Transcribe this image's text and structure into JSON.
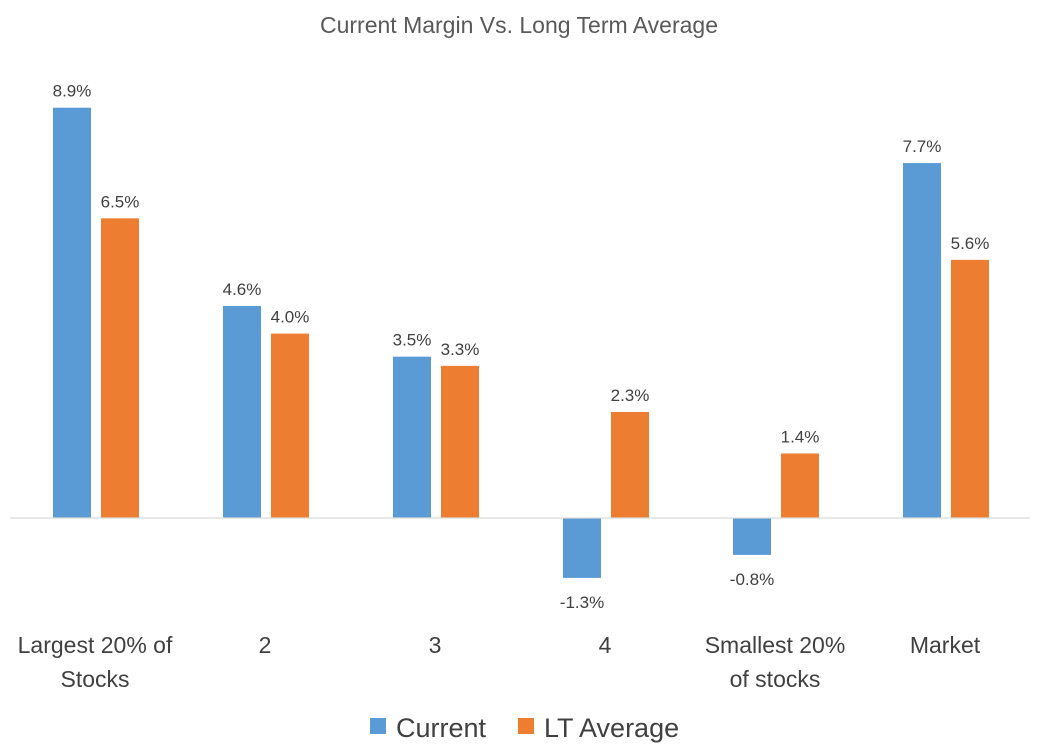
{
  "chart_data": {
    "type": "bar",
    "title": "Current Margin Vs. Long Term Average",
    "categories": [
      [
        "Largest 20% of",
        "Stocks"
      ],
      [
        "2"
      ],
      [
        "3"
      ],
      [
        "4"
      ],
      [
        "Smallest 20%",
        "of stocks"
      ],
      [
        "Market"
      ]
    ],
    "series": [
      {
        "name": "Current",
        "color": "#5B9BD5",
        "values": [
          8.9,
          4.6,
          3.5,
          -1.3,
          -0.8,
          7.7
        ],
        "labels": [
          "8.9%",
          "4.6%",
          "3.5%",
          "-1.3%",
          "-0.8%",
          "7.7%"
        ]
      },
      {
        "name": "LT Average",
        "color": "#ED7D31",
        "values": [
          6.5,
          4.0,
          3.3,
          2.3,
          1.4,
          5.6
        ],
        "labels": [
          "6.5%",
          "4.0%",
          "3.3%",
          "2.3%",
          "1.4%",
          "5.6%"
        ]
      }
    ],
    "ylim": [
      -2.0,
      9.5
    ],
    "grid": false,
    "legend_position": "bottom",
    "axis_line_color": "#D9D9D9"
  }
}
